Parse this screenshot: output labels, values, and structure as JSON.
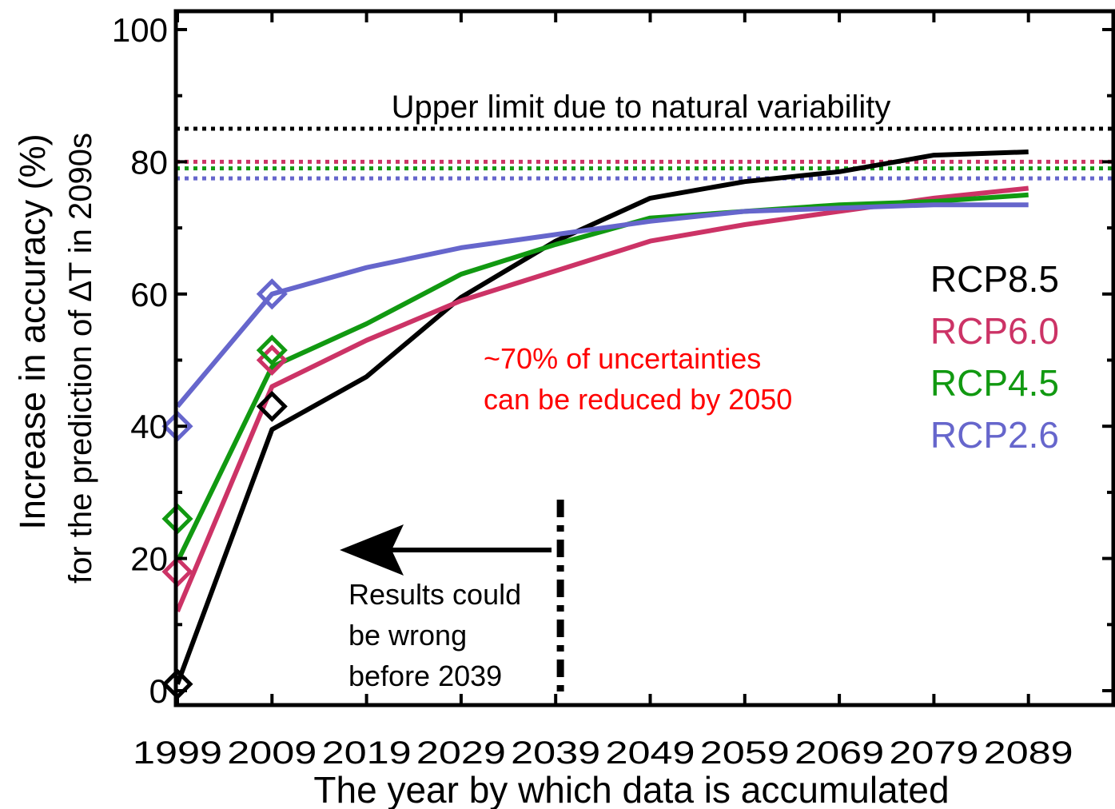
{
  "chart_data": {
    "type": "line",
    "xlabel": "The year by which data is accumulated",
    "ylabel_line1": "Increase in accuracy (%)",
    "ylabel_line2": "for the prediction of ∆T in 2090s",
    "x": [
      1999,
      2009,
      2019,
      2029,
      2039,
      2049,
      2059,
      2069,
      2079,
      2089
    ],
    "xlim": [
      1999,
      2099
    ],
    "ylim": [
      -2,
      102
    ],
    "yticks": [
      0,
      20,
      40,
      60,
      80,
      100
    ],
    "series": [
      {
        "name": "RCP8.5",
        "color": "#000000",
        "values": [
          1,
          39.5,
          47.5,
          59.5,
          68,
          74.5,
          77,
          78.5,
          81,
          81.5
        ],
        "marker_values": [
          1,
          43
        ]
      },
      {
        "name": "RCP6.0",
        "color": "#cc3366",
        "values": [
          12,
          46,
          53,
          59,
          63.5,
          68,
          70.5,
          72.5,
          74.5,
          76
        ],
        "marker_values": [
          18,
          50
        ]
      },
      {
        "name": "RCP4.5",
        "color": "#119911",
        "values": [
          19.5,
          49,
          55.5,
          63,
          67.5,
          71.5,
          72.5,
          73.5,
          74,
          75
        ],
        "marker_values": [
          26,
          51.5
        ]
      },
      {
        "name": "RCP2.6",
        "color": "#6666cc",
        "values": [
          43,
          60,
          64,
          67,
          69,
          71,
          72.5,
          73,
          73.5,
          73.5
        ],
        "marker_values": [
          40,
          60
        ]
      }
    ],
    "reference_lines": [
      {
        "series": "RCP8.5",
        "y": 85
      },
      {
        "series": "RCP6.0",
        "y": 80
      },
      {
        "series": "RCP4.5",
        "y": 79
      },
      {
        "series": "RCP2.6",
        "y": 77.5
      }
    ],
    "cutoff_year": 2039.5,
    "legend_position": "right"
  },
  "annotations": {
    "upper_limit": "Upper limit due to natural variability",
    "uncertainty_line1": "~70% of uncertainties",
    "uncertainty_line2": "can be reduced by 2050",
    "warning_line1": "Results could",
    "warning_line2": "be wrong",
    "warning_line3": "before 2039"
  },
  "colors": {
    "annotation_red": "#ff0000"
  }
}
